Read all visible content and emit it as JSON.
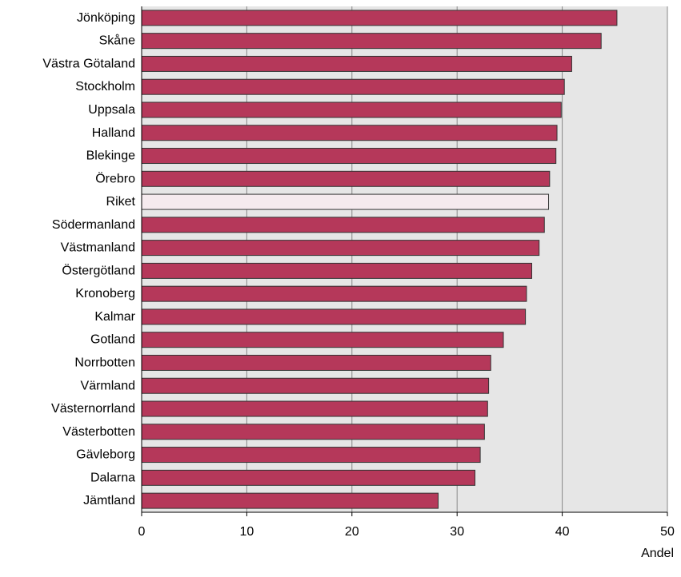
{
  "chart_data": {
    "type": "bar",
    "orientation": "horizontal",
    "xlabel": "Andel",
    "xlim": [
      0,
      50
    ],
    "xticks": [
      0,
      10,
      20,
      30,
      40,
      50
    ],
    "grid": true,
    "categories": [
      "Jönköping",
      "Skåne",
      "Västra Götaland",
      "Stockholm",
      "Uppsala",
      "Halland",
      "Blekinge",
      "Örebro",
      "Riket",
      "Södermanland",
      "Västmanland",
      "Östergötland",
      "Kronoberg",
      "Kalmar",
      "Gotland",
      "Norrbotten",
      "Värmland",
      "Västernorrland",
      "Västerbotten",
      "Gävleborg",
      "Dalarna",
      "Jämtland"
    ],
    "values": [
      45.2,
      43.7,
      40.9,
      40.2,
      39.9,
      39.5,
      39.4,
      38.8,
      38.7,
      38.3,
      37.8,
      37.1,
      36.6,
      36.5,
      34.4,
      33.2,
      33.0,
      32.9,
      32.6,
      32.2,
      31.7,
      28.2
    ],
    "highlight_category": "Riket",
    "colors": {
      "bar": "#b5385a",
      "bar_highlight": "#f5eaee",
      "bar_stroke": "#333333",
      "plot_background": "#e6e6e6",
      "gridline": "#888888"
    }
  }
}
